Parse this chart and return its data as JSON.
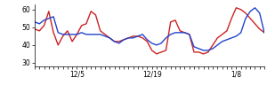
{
  "title": "",
  "xlim": [
    0,
    49
  ],
  "ylim": [
    28,
    63
  ],
  "yticks": [
    30,
    40,
    50,
    60
  ],
  "xtick_labels": [
    "12/5",
    "12/19",
    "1/8"
  ],
  "xtick_positions": [
    9,
    25,
    43
  ],
  "bg_color": "#ffffff",
  "red_line": [
    49,
    48,
    51,
    59,
    47,
    40,
    45,
    48,
    42,
    46,
    51,
    52,
    59,
    57,
    48,
    46,
    44,
    42,
    42,
    43,
    44,
    45,
    45,
    44,
    42,
    37,
    35,
    36,
    37,
    53,
    54,
    48,
    47,
    46,
    36,
    36,
    35,
    36,
    40,
    44,
    46,
    48,
    55,
    61,
    60,
    58,
    55,
    52,
    49,
    47
  ],
  "blue_line": [
    53,
    52,
    54,
    55,
    56,
    47,
    46,
    46,
    46,
    46,
    47,
    46,
    46,
    46,
    46,
    45,
    44,
    42,
    41,
    43,
    44,
    44,
    45,
    46,
    43,
    41,
    40,
    41,
    44,
    46,
    47,
    47,
    47,
    46,
    39,
    38,
    37,
    37,
    38,
    40,
    42,
    43,
    44,
    45,
    47,
    55,
    59,
    61,
    58,
    47
  ],
  "red_color": "#cc2222",
  "blue_color": "#2244cc",
  "linewidth": 1.0
}
